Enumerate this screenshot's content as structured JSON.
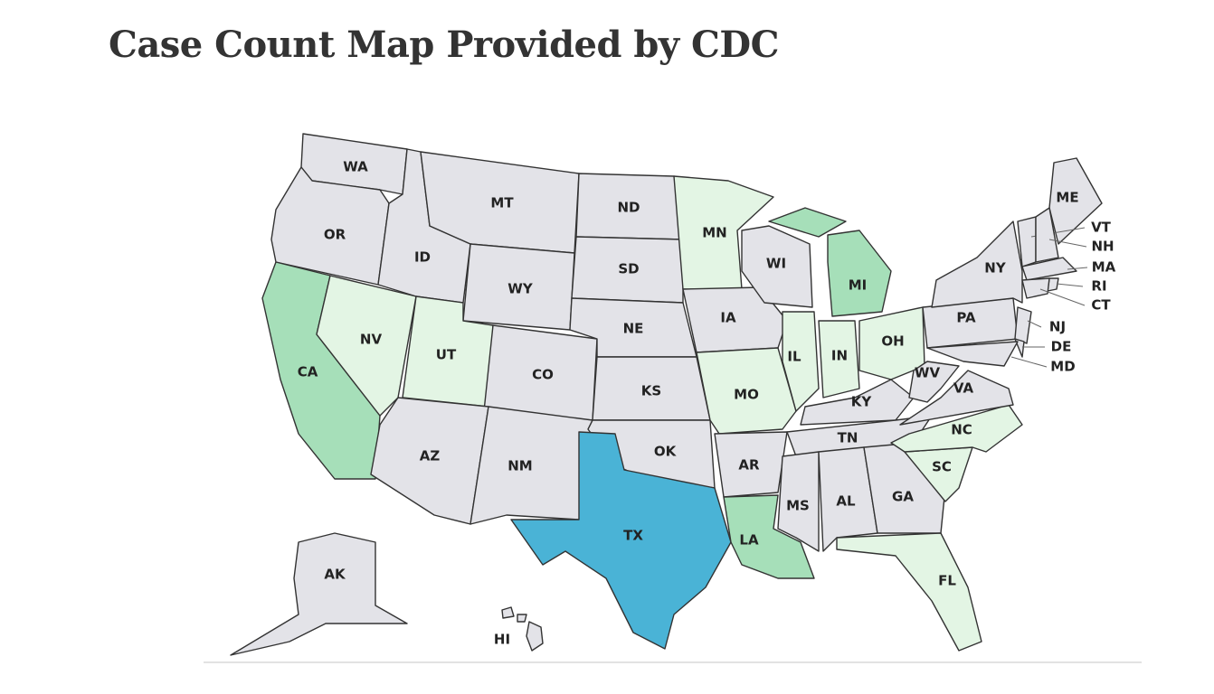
{
  "header": {
    "title": "Case Count Map Provided by CDC"
  },
  "map": {
    "states": [
      {
        "label": "WA"
      },
      {
        "label": "OR"
      },
      {
        "label": "CA"
      },
      {
        "label": "NV"
      },
      {
        "label": "ID"
      },
      {
        "label": "MT"
      },
      {
        "label": "WY"
      },
      {
        "label": "UT"
      },
      {
        "label": "CO"
      },
      {
        "label": "AZ"
      },
      {
        "label": "NM"
      },
      {
        "label": "ND"
      },
      {
        "label": "SD"
      },
      {
        "label": "NE"
      },
      {
        "label": "KS"
      },
      {
        "label": "OK"
      },
      {
        "label": "TX"
      },
      {
        "label": "MN"
      },
      {
        "label": "IA"
      },
      {
        "label": "MO"
      },
      {
        "label": "AR"
      },
      {
        "label": "LA"
      },
      {
        "label": "WI"
      },
      {
        "label": "MI"
      },
      {
        "label": "IL"
      },
      {
        "label": "IN"
      },
      {
        "label": "OH"
      },
      {
        "label": "KY"
      },
      {
        "label": "TN"
      },
      {
        "label": "MS"
      },
      {
        "label": "AL"
      },
      {
        "label": "GA"
      },
      {
        "label": "FL"
      },
      {
        "label": "SC"
      },
      {
        "label": "NC"
      },
      {
        "label": "VA"
      },
      {
        "label": "WV"
      },
      {
        "label": "PA"
      },
      {
        "label": "NY"
      },
      {
        "label": "ME"
      },
      {
        "label": "VT"
      },
      {
        "label": "NH"
      },
      {
        "label": "MA"
      },
      {
        "label": "RI"
      },
      {
        "label": "CT"
      },
      {
        "label": "NJ"
      },
      {
        "label": "DE"
      },
      {
        "label": "MD"
      },
      {
        "label": "AK"
      },
      {
        "label": "HI"
      }
    ]
  }
}
